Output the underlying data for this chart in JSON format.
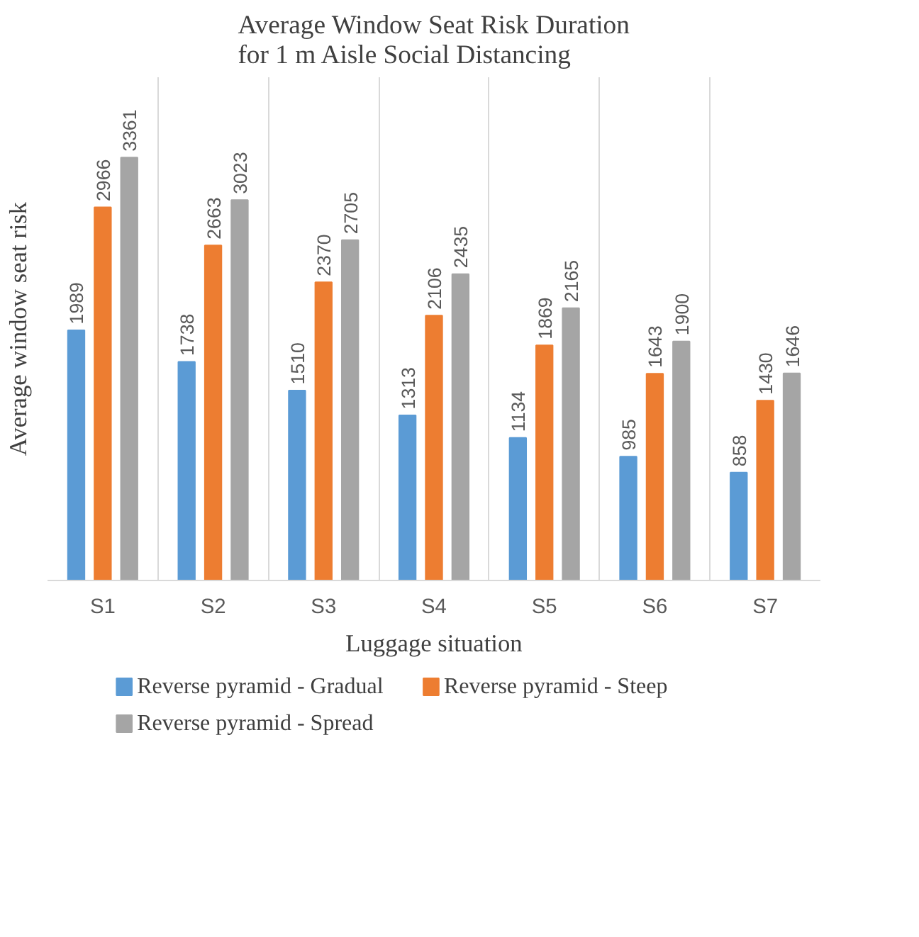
{
  "chart_data": {
    "type": "bar",
    "title": "Average Window Seat Risk Duration\nfor 1 m Aisle Social Distancing",
    "xlabel": "Luggage situation",
    "ylabel": "Average window seat risk",
    "categories": [
      "S1",
      "S2",
      "S3",
      "S4",
      "S5",
      "S6",
      "S7"
    ],
    "series": [
      {
        "name": "Reverse pyramid - Gradual",
        "color": "#5b9bd5",
        "values": [
          1989,
          1738,
          1510,
          1313,
          1134,
          985,
          858
        ]
      },
      {
        "name": "Reverse pyramid - Steep",
        "color": "#ed7d31",
        "values": [
          2966,
          2663,
          2370,
          2106,
          1869,
          1643,
          1430
        ]
      },
      {
        "name": "Reverse pyramid - Spread",
        "color": "#a5a5a5",
        "values": [
          3361,
          3023,
          2705,
          2435,
          2165,
          1900,
          1646
        ]
      }
    ],
    "data_labels": true,
    "grid": "x",
    "legend": "bottom"
  }
}
